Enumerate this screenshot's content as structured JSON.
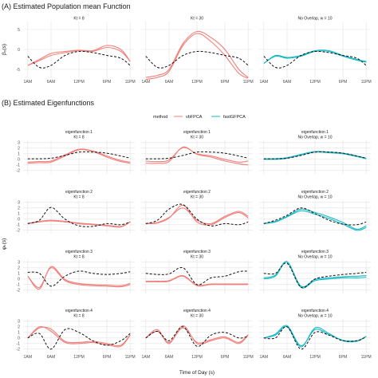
{
  "sections": {
    "a_title": "(A) Estimated Population mean Function",
    "b_title": "(B) Estimated Eigenfunctions"
  },
  "legend": {
    "title": "method",
    "items": [
      {
        "label": "vbFPCA",
        "color": "#f07f7a"
      },
      {
        "label": "fastGFPCA",
        "color": "#16b9c5"
      }
    ]
  },
  "colors": {
    "true": "#111111",
    "vbFPCA": "#f07f7a",
    "fastGFPCA": "#16b9c5",
    "panel_bg": "#f4f4f4",
    "grid": "#e2e2e2"
  },
  "chart_data": [
    {
      "type": "line",
      "section": "A",
      "xlabel": "",
      "ylabel": "β₀(s)",
      "x_tick_labels": [
        "1AM",
        "6AM",
        "12PM",
        "6PM",
        "11PM"
      ],
      "x": [
        1,
        3.5,
        6,
        9,
        12,
        15,
        18,
        21,
        23
      ],
      "ylim": [
        -7,
        7
      ],
      "y_ticks": [
        -5,
        0,
        5
      ],
      "panels": [
        {
          "label": "Kt = 8",
          "series": [
            {
              "name": "truth",
              "values": [
                -1.7,
                -4.5,
                -4.0,
                -1.5,
                -0.5,
                -0.8,
                -1.5,
                -2.2,
                -4.0
              ]
            },
            {
              "name": "vbFPCA",
              "values": [
                -4.0,
                -2.8,
                -1.5,
                -0.8,
                -0.3,
                -0.5,
                0.5,
                -0.5,
                -3.0
              ]
            },
            {
              "name": "vbFPCA",
              "values": [
                -4.0,
                -2.5,
                -1.0,
                -0.5,
                -0.2,
                -0.3,
                1.0,
                0.0,
                -3.0
              ]
            }
          ]
        },
        {
          "label": "Kt = 30",
          "series": [
            {
              "name": "truth",
              "values": [
                -1.7,
                -4.5,
                -4.0,
                -1.5,
                -0.5,
                -0.8,
                -1.5,
                -2.2,
                -4.0
              ]
            },
            {
              "name": "vbFPCA",
              "values": [
                -7.5,
                -7.0,
                -5.5,
                1.0,
                4.0,
                2.0,
                -1.5,
                -6.0,
                -7.2
              ]
            },
            {
              "name": "vbFPCA",
              "values": [
                -7.0,
                -6.5,
                -5.0,
                1.5,
                4.5,
                3.0,
                0.0,
                -5.0,
                -7.0
              ]
            }
          ]
        },
        {
          "label": "No Overlap, w = 10",
          "series": [
            {
              "name": "truth",
              "values": [
                -1.7,
                -4.5,
                -4.0,
                -1.5,
                -0.5,
                -0.8,
                -1.5,
                -2.2,
                -4.0
              ]
            },
            {
              "name": "fastGFPCA",
              "values": [
                -3.5,
                -1.5,
                -2.0,
                -1.5,
                -0.3,
                -0.3,
                -1.5,
                -2.5,
                -3.0
              ]
            },
            {
              "name": "fastGFPCA",
              "values": [
                -3.5,
                -1.7,
                -2.2,
                -1.7,
                -0.5,
                -0.5,
                -1.7,
                -2.7,
                -3.2
              ]
            }
          ]
        }
      ]
    },
    {
      "type": "line",
      "section": "B",
      "xlabel": "Time of Day (s)",
      "ylabel": "φₖ(s)",
      "x_tick_labels": [
        "1AM",
        "6AM",
        "12PM",
        "6PM",
        "11PM"
      ],
      "x": [
        1,
        3.5,
        6,
        9,
        12,
        15,
        18,
        21,
        23
      ],
      "ylim": [
        -2.6,
        3.4
      ],
      "y_ticks": [
        -2,
        -1,
        0,
        1,
        2,
        3
      ],
      "rows": [
        {
          "label": "eigenfunction 1",
          "panels": [
            {
              "label": "Kt = 8",
              "series": [
                {
                  "name": "truth",
                  "values": [
                    0.1,
                    0.1,
                    0.2,
                    0.7,
                    1.3,
                    1.3,
                    1.1,
                    0.6,
                    0.2
                  ]
                },
                {
                  "name": "vbFPCA",
                  "values": [
                    -0.7,
                    -0.6,
                    -0.5,
                    0.6,
                    1.7,
                    1.4,
                    0.4,
                    -0.4,
                    -0.7
                  ]
                },
                {
                  "name": "vbFPCA",
                  "values": [
                    -0.5,
                    -0.4,
                    -0.3,
                    0.8,
                    1.8,
                    1.5,
                    0.6,
                    -0.2,
                    -0.5
                  ]
                }
              ]
            },
            {
              "label": "Kt = 30",
              "series": [
                {
                  "name": "truth",
                  "values": [
                    0.1,
                    0.1,
                    0.2,
                    0.7,
                    1.3,
                    1.3,
                    1.1,
                    0.6,
                    0.2
                  ]
                },
                {
                  "name": "vbFPCA",
                  "values": [
                    -0.7,
                    -0.7,
                    -0.4,
                    2.2,
                    0.9,
                    0.4,
                    -0.3,
                    -0.8,
                    -1.0
                  ]
                },
                {
                  "name": "vbFPCA",
                  "values": [
                    -0.3,
                    -0.4,
                    -0.1,
                    2.1,
                    1.0,
                    0.6,
                    0.0,
                    -0.5,
                    -0.3
                  ]
                }
              ]
            },
            {
              "label": "No Overlap, w = 10",
              "series": [
                {
                  "name": "truth",
                  "values": [
                    0.1,
                    0.1,
                    0.2,
                    0.7,
                    1.3,
                    1.3,
                    1.1,
                    0.6,
                    0.2
                  ]
                },
                {
                  "name": "fastGFPCA",
                  "values": [
                    0.0,
                    0.0,
                    0.2,
                    0.8,
                    1.3,
                    1.2,
                    1.0,
                    0.5,
                    0.1
                  ]
                },
                {
                  "name": "fastGFPCA",
                  "values": [
                    0.1,
                    0.1,
                    0.3,
                    0.9,
                    1.4,
                    1.3,
                    1.1,
                    0.6,
                    0.2
                  ]
                }
              ]
            }
          ]
        },
        {
          "label": "eigenfunction 2",
          "panels": [
            {
              "label": "Kt = 8",
              "series": [
                {
                  "name": "truth",
                  "values": [
                    -0.8,
                    -0.2,
                    2.1,
                    0.0,
                    -1.2,
                    -1.3,
                    -0.8,
                    -1.0,
                    -0.5
                  ]
                },
                {
                  "name": "vbFPCA",
                  "values": [
                    -0.8,
                    -0.5,
                    -0.3,
                    -0.5,
                    -0.8,
                    -1.0,
                    -1.2,
                    -1.4,
                    -0.5
                  ]
                },
                {
                  "name": "vbFPCA",
                  "values": [
                    -0.8,
                    -0.4,
                    -0.2,
                    -0.4,
                    -0.7,
                    -0.9,
                    -1.1,
                    -1.3,
                    -0.5
                  ]
                }
              ]
            },
            {
              "label": "Kt = 30",
              "series": [
                {
                  "name": "truth",
                  "values": [
                    -0.8,
                    -0.2,
                    1.8,
                    2.6,
                    0.0,
                    -1.2,
                    -0.8,
                    -1.0,
                    -0.5
                  ]
                },
                {
                  "name": "vbFPCA",
                  "values": [
                    -0.8,
                    -0.7,
                    0.2,
                    2.5,
                    -0.5,
                    -1.0,
                    0.3,
                    1.2,
                    0.2
                  ]
                },
                {
                  "name": "vbFPCA",
                  "values": [
                    -0.8,
                    -0.6,
                    0.3,
                    2.0,
                    -0.2,
                    -0.8,
                    0.5,
                    1.4,
                    0.5
                  ]
                }
              ]
            },
            {
              "label": "No Overlap, w = 10",
              "series": [
                {
                  "name": "truth",
                  "values": [
                    -0.8,
                    -0.2,
                    0.7,
                    2.0,
                    1.0,
                    -0.2,
                    -0.9,
                    -1.0,
                    -0.5
                  ]
                },
                {
                  "name": "fastGFPCA",
                  "values": [
                    -0.8,
                    -0.4,
                    0.5,
                    1.8,
                    1.2,
                    0.4,
                    -0.6,
                    -1.8,
                    -1.2
                  ]
                },
                {
                  "name": "fastGFPCA",
                  "values": [
                    -0.8,
                    -0.5,
                    0.4,
                    1.5,
                    0.9,
                    0.1,
                    -0.9,
                    -2.0,
                    -1.5
                  ]
                }
              ]
            }
          ]
        },
        {
          "label": "eigenfunction 3",
          "panels": [
            {
              "label": "Kt = 8",
              "series": [
                {
                  "name": "truth",
                  "values": [
                    1.2,
                    1.0,
                    -1.3,
                    0.5,
                    1.4,
                    1.0,
                    0.8,
                    1.0,
                    1.3
                  ]
                },
                {
                  "name": "vbFPCA",
                  "values": [
                    0.5,
                    -1.5,
                    2.0,
                    -0.3,
                    -1.0,
                    -1.2,
                    -1.3,
                    -1.4,
                    -1.0
                  ]
                },
                {
                  "name": "vbFPCA",
                  "values": [
                    0.5,
                    -1.8,
                    2.2,
                    -0.1,
                    -0.8,
                    -1.0,
                    -1.1,
                    -1.2,
                    -0.8
                  ]
                }
              ]
            },
            {
              "label": "Kt = 30",
              "series": [
                {
                  "name": "truth",
                  "values": [
                    1.0,
                    0.8,
                    0.9,
                    2.0,
                    -1.0,
                    0.2,
                    0.5,
                    1.3,
                    1.4
                  ]
                },
                {
                  "name": "vbFPCA",
                  "values": [
                    -0.5,
                    -0.5,
                    -0.4,
                    0.5,
                    -1.2,
                    -1.0,
                    -1.0,
                    -1.0,
                    -1.0
                  ]
                },
                {
                  "name": "vbFPCA",
                  "values": [
                    -0.4,
                    -0.4,
                    -0.3,
                    0.6,
                    -1.1,
                    -0.9,
                    -0.9,
                    -0.9,
                    -0.9
                  ]
                }
              ]
            },
            {
              "label": "No Overlap, w = 10",
              "series": [
                {
                  "name": "truth",
                  "values": [
                    1.0,
                    1.0,
                    2.8,
                    -1.5,
                    0.0,
                    0.5,
                    0.8,
                    1.0,
                    1.2
                  ]
                },
                {
                  "name": "fastGFPCA",
                  "values": [
                    0.0,
                    0.5,
                    3.0,
                    -1.5,
                    -0.3,
                    0.0,
                    0.2,
                    0.2,
                    0.3
                  ]
                },
                {
                  "name": "fastGFPCA",
                  "values": [
                    0.2,
                    0.7,
                    3.1,
                    -1.3,
                    -0.1,
                    0.2,
                    0.4,
                    0.5,
                    0.6
                  ]
                }
              ]
            }
          ]
        },
        {
          "label": "eigenfunction 4",
          "panels": [
            {
              "label": "Kt = 8",
              "series": [
                {
                  "name": "truth",
                  "values": [
                    0.0,
                    0.8,
                    -2.0,
                    1.5,
                    1.0,
                    -0.5,
                    -1.3,
                    -0.5,
                    0.8
                  ]
                },
                {
                  "name": "vbFPCA",
                  "values": [
                    0.0,
                    2.0,
                    1.2,
                    -0.8,
                    -1.0,
                    -0.8,
                    -1.2,
                    -1.5,
                    0.5
                  ]
                },
                {
                  "name": "vbFPCA",
                  "values": [
                    0.0,
                    1.8,
                    1.6,
                    -0.6,
                    -0.8,
                    -0.6,
                    -1.0,
                    -1.3,
                    0.6
                  ]
                }
              ]
            },
            {
              "label": "Kt = 30",
              "series": [
                {
                  "name": "truth",
                  "values": [
                    0.0,
                    1.2,
                    -0.5,
                    2.0,
                    -1.5,
                    0.5,
                    1.0,
                    0.0,
                    0.3
                  ]
                },
                {
                  "name": "vbFPCA",
                  "values": [
                    0.0,
                    1.5,
                    -1.0,
                    2.2,
                    -1.0,
                    -0.5,
                    0.0,
                    -1.0,
                    0.5
                  ]
                },
                {
                  "name": "vbFPCA",
                  "values": [
                    0.0,
                    1.2,
                    -0.8,
                    1.8,
                    -0.8,
                    -0.3,
                    0.2,
                    -0.8,
                    0.6
                  ]
                }
              ]
            },
            {
              "label": "No Overlap, w = 10",
              "series": [
                {
                  "name": "truth",
                  "values": [
                    0.0,
                    0.0,
                    2.0,
                    -2.0,
                    1.0,
                    0.5,
                    -0.5,
                    -0.5,
                    0.2
                  ]
                },
                {
                  "name": "fastGFPCA",
                  "values": [
                    0.0,
                    0.5,
                    2.0,
                    -1.6,
                    1.8,
                    0.8,
                    -0.5,
                    -0.6,
                    0.3
                  ]
                },
                {
                  "name": "fastGFPCA",
                  "values": [
                    0.0,
                    0.7,
                    2.2,
                    -1.4,
                    1.5,
                    0.6,
                    -0.4,
                    -0.5,
                    0.3
                  ]
                }
              ]
            }
          ]
        }
      ]
    }
  ]
}
